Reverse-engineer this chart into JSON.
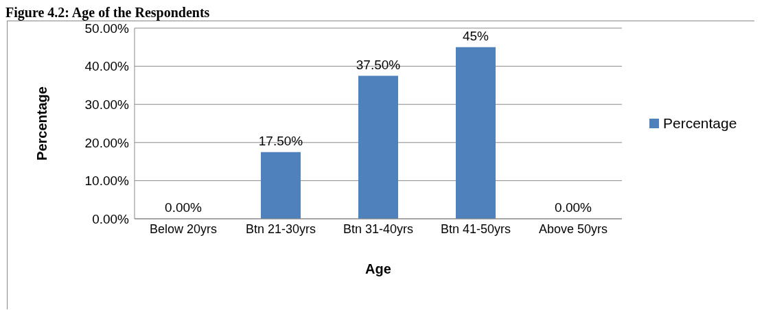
{
  "chart_data": {
    "type": "bar",
    "title": "Figure 4.2: Age of the Respondents",
    "xlabel": "Age",
    "ylabel": "Percentage",
    "categories": [
      "Below 20yrs",
      "Btn 21-30yrs",
      "Btn 31-40yrs",
      "Btn 41-50yrs",
      "Above 50yrs"
    ],
    "series": [
      {
        "name": "Percentage",
        "color": "#4f81bd",
        "values": [
          0,
          17.5,
          37.5,
          45,
          0
        ],
        "value_labels": [
          "0.00%",
          "17.50%",
          "37.50%",
          "45%",
          "0.00%"
        ]
      }
    ],
    "ylim": [
      0,
      50
    ],
    "yticks": [
      {
        "value": 0,
        "label": "0.00%"
      },
      {
        "value": 10,
        "label": "10.00%"
      },
      {
        "value": 20,
        "label": "20.00%"
      },
      {
        "value": 30,
        "label": "30.00%"
      },
      {
        "value": 40,
        "label": "40.00%"
      },
      {
        "value": 50,
        "label": "50.00%"
      }
    ],
    "grid": "y",
    "legend": "right"
  }
}
